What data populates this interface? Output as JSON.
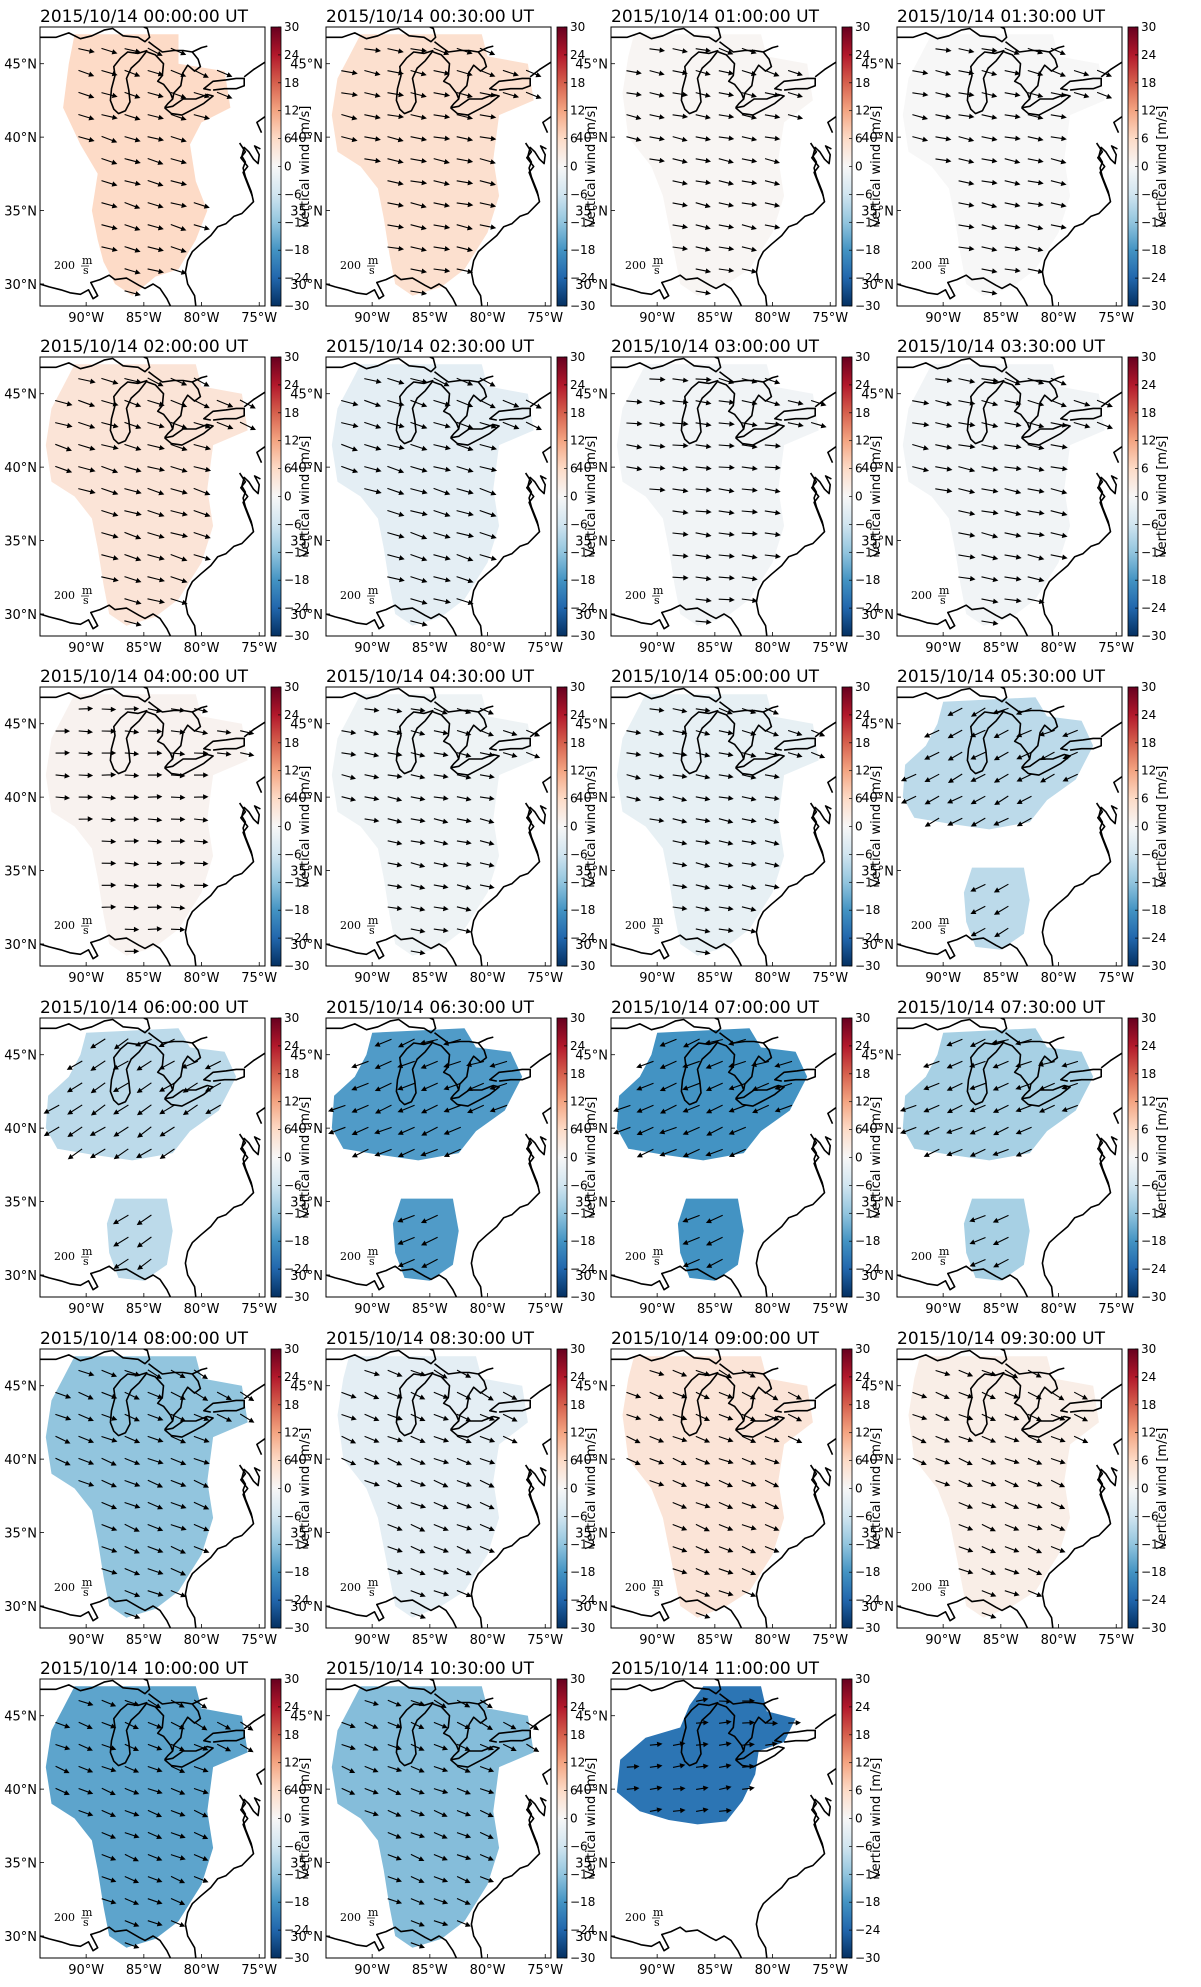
{
  "colors": {
    "cmap": [
      "#053061",
      "#2166ac",
      "#4393c3",
      "#92c5de",
      "#d1e5f0",
      "#f7f7f7",
      "#fddbc7",
      "#f4a582",
      "#d6604d",
      "#b2182b",
      "#67001f"
    ],
    "coast": "#000000"
  },
  "axes": {
    "xlabels": [
      "90°W",
      "85°W",
      "80°W",
      "75°W"
    ],
    "ylabels": [
      "30°N",
      "35°N",
      "40°N",
      "45°N"
    ],
    "lon_range": [
      -94,
      -74.5
    ],
    "lat_range": [
      28.5,
      47.5
    ]
  },
  "colorbar": {
    "label": "Vertical wind [m/s]",
    "ticks": [
      "30",
      "24",
      "18",
      "12",
      "6",
      "0",
      "−6",
      "−12",
      "−18",
      "−24",
      "−30"
    ],
    "range": [
      -30,
      30
    ]
  },
  "scale": {
    "label": "200",
    "unit_num": "m",
    "unit_den": "s"
  },
  "chart_data": {
    "type": "map",
    "quantity": "Vertical wind [m/s]",
    "panels": [
      {
        "title": "2015/10/14 00:00:00 UT",
        "value": 6,
        "shape": "full_narrow",
        "arrow_dir": 115,
        "arrow_len": 0.55
      },
      {
        "title": "2015/10/14 00:30:00 UT",
        "value": 5,
        "shape": "full_wide",
        "arrow_dir": 110,
        "arrow_len": 0.55
      },
      {
        "title": "2015/10/14 01:00:00 UT",
        "value": 0.5,
        "shape": "full_mid",
        "arrow_dir": 110,
        "arrow_len": 0.45
      },
      {
        "title": "2015/10/14 01:30:00 UT",
        "value": 0,
        "shape": "full_wide",
        "arrow_dir": 110,
        "arrow_len": 0.5
      },
      {
        "title": "2015/10/14 02:00:00 UT",
        "value": 4,
        "shape": "full_wide",
        "arrow_dir": 115,
        "arrow_len": 0.65
      },
      {
        "title": "2015/10/14 02:30:00 UT",
        "value": -3,
        "shape": "full_wide",
        "arrow_dir": 115,
        "arrow_len": 0.65
      },
      {
        "title": "2015/10/14 03:00:00 UT",
        "value": -1,
        "shape": "full_wide",
        "arrow_dir": 105,
        "arrow_len": 0.5
      },
      {
        "title": "2015/10/14 03:30:00 UT",
        "value": -1,
        "shape": "full_wide",
        "arrow_dir": 110,
        "arrow_len": 0.6
      },
      {
        "title": "2015/10/14 04:00:00 UT",
        "value": 1,
        "shape": "full_wide",
        "arrow_dir": 100,
        "arrow_len": 0.35
      },
      {
        "title": "2015/10/14 04:30:00 UT",
        "value": -1.5,
        "shape": "full_wide",
        "arrow_dir": 110,
        "arrow_len": 0.4
      },
      {
        "title": "2015/10/14 05:00:00 UT",
        "value": -2.5,
        "shape": "full_wide",
        "arrow_dir": 110,
        "arrow_len": 0.4
      },
      {
        "title": "2015/10/14 05:30:00 UT",
        "value": -8,
        "shape": "split",
        "arrow_dir": 250,
        "arrow_len": 0.55
      },
      {
        "title": "2015/10/14 06:00:00 UT",
        "value": -8,
        "shape": "split",
        "arrow_dir": 245,
        "arrow_len": 0.65
      },
      {
        "title": "2015/10/14 06:30:00 UT",
        "value": -17,
        "shape": "split",
        "arrow_dir": 255,
        "arrow_len": 0.7
      },
      {
        "title": "2015/10/14 07:00:00 UT",
        "value": -18,
        "shape": "split",
        "arrow_dir": 255,
        "arrow_len": 0.7
      },
      {
        "title": "2015/10/14 07:30:00 UT",
        "value": -10,
        "shape": "split",
        "arrow_dir": 255,
        "arrow_len": 0.6
      },
      {
        "title": "2015/10/14 08:00:00 UT",
        "value": -12,
        "shape": "full_wide",
        "arrow_dir": 120,
        "arrow_len": 0.55
      },
      {
        "title": "2015/10/14 08:30:00 UT",
        "value": -3,
        "shape": "full_mid",
        "arrow_dir": 120,
        "arrow_len": 0.5
      },
      {
        "title": "2015/10/14 09:00:00 UT",
        "value": 4,
        "shape": "full_mid",
        "arrow_dir": 120,
        "arrow_len": 0.45
      },
      {
        "title": "2015/10/14 09:30:00 UT",
        "value": 2,
        "shape": "full_mid",
        "arrow_dir": 120,
        "arrow_len": 0.45
      },
      {
        "title": "2015/10/14 10:00:00 UT",
        "value": -16,
        "shape": "full_wide",
        "arrow_dir": 120,
        "arrow_len": 0.45
      },
      {
        "title": "2015/10/14 10:30:00 UT",
        "value": -13,
        "shape": "full_wide",
        "arrow_dir": 120,
        "arrow_len": 0.4
      },
      {
        "title": "2015/10/14 11:00:00 UT",
        "value": -22,
        "shape": "north_only",
        "arrow_dir": 90,
        "arrow_len": 0.2
      }
    ]
  }
}
